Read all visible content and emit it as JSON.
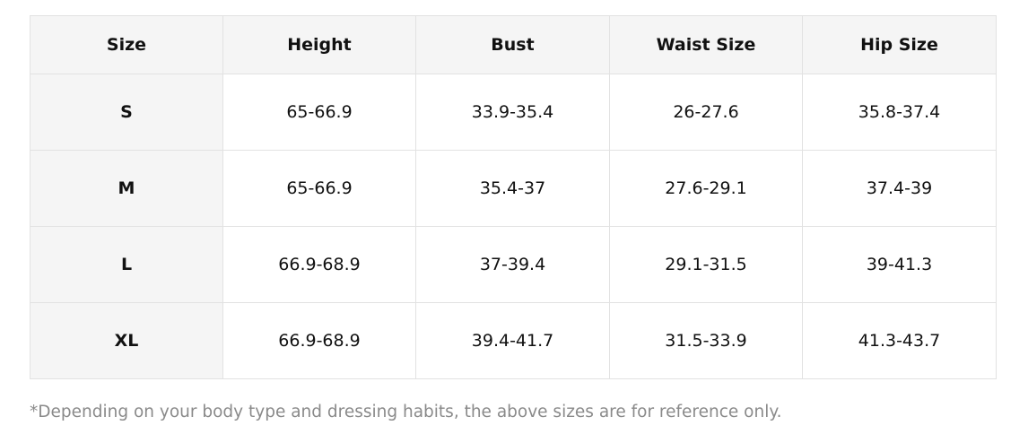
{
  "table": {
    "headers": [
      "Size",
      "Height",
      "Bust",
      "Waist Size",
      "Hip Size"
    ],
    "rows": [
      {
        "size": "S",
        "height": "65-66.9",
        "bust": "33.9-35.4",
        "waist": "26-27.6",
        "hip": "35.8-37.4"
      },
      {
        "size": "M",
        "height": "65-66.9",
        "bust": "35.4-37",
        "waist": "27.6-29.1",
        "hip": "37.4-39"
      },
      {
        "size": "L",
        "height": "66.9-68.9",
        "bust": "37-39.4",
        "waist": "29.1-31.5",
        "hip": "39-41.3"
      },
      {
        "size": "XL",
        "height": "66.9-68.9",
        "bust": "39.4-41.7",
        "waist": "31.5-33.9",
        "hip": "41.3-43.7"
      }
    ]
  },
  "footnote": "*Depending on your body type and dressing habits, the above sizes are for reference only."
}
